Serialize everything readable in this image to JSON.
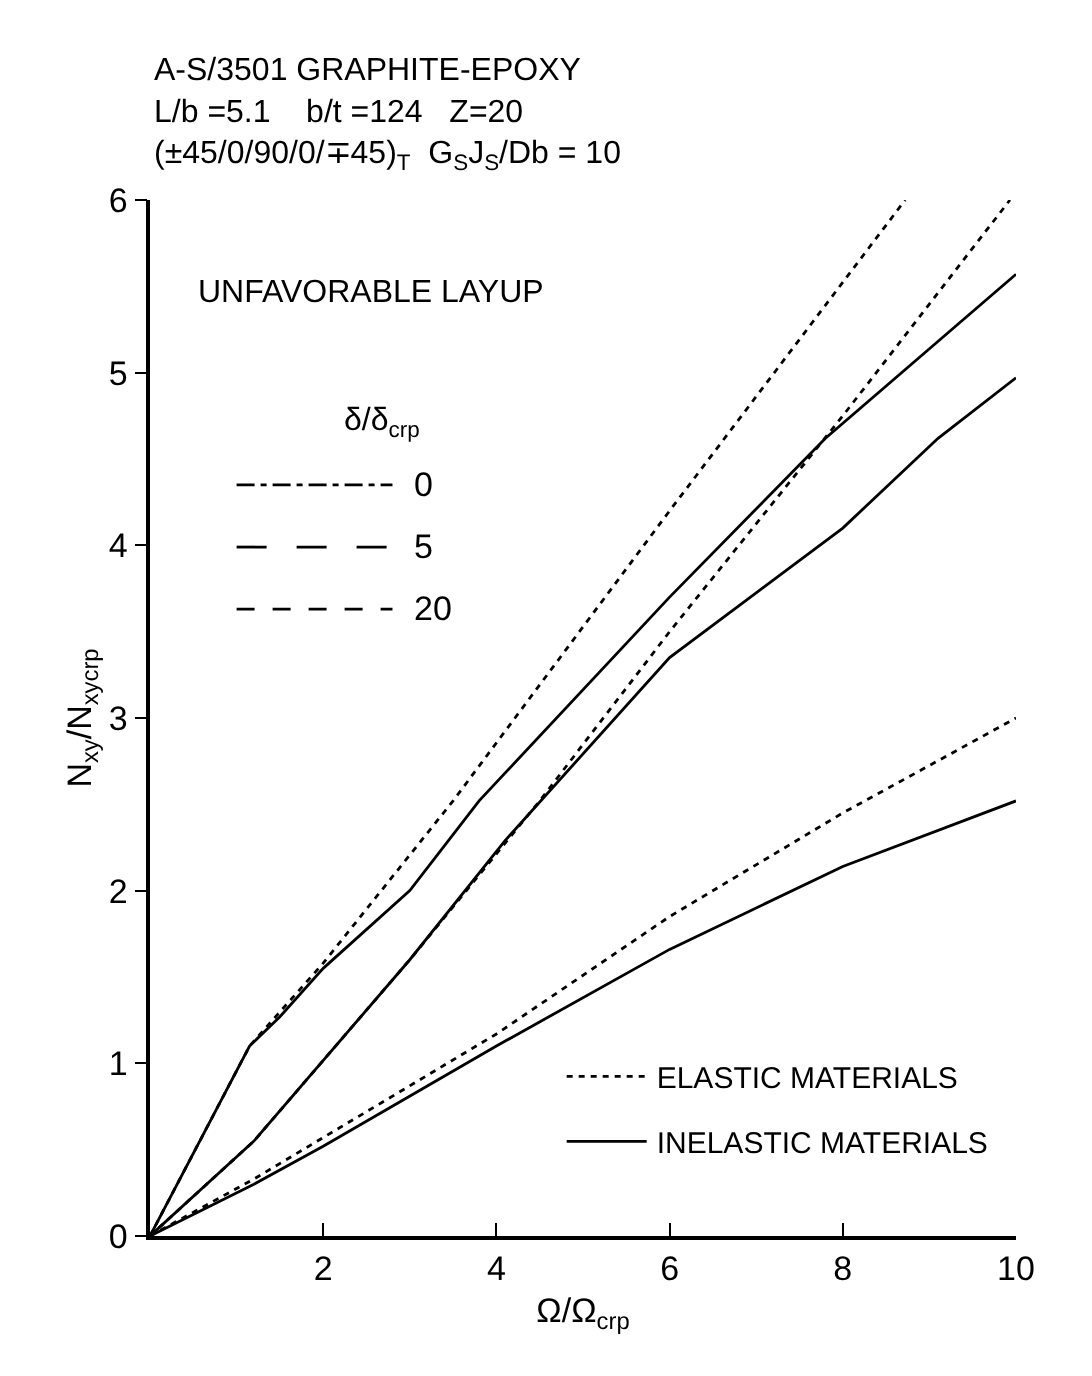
{
  "chart_data": {
    "type": "line",
    "title": "A-S/3501 GRAPHITE-EPOXY",
    "subtitle": "L/b =5.1    b/t =124   Z=20\n(±45/0/90/0/∓45)$_{T}$  G$_{S}$J$_{S}$/Db = 10",
    "xlabel": "Ω/Ω$_{crp}$",
    "ylabel": "N$_{xy}$/N$_{xycrp}$",
    "xlim": [
      0,
      10
    ],
    "ylim": [
      0,
      6
    ],
    "xticks": [
      2,
      4,
      6,
      8,
      10
    ],
    "yticks": [
      0,
      1,
      2,
      3,
      4,
      5,
      6
    ],
    "legend": "bottom right",
    "marker": "none",
    "legend_title": "δ/δ$_{crp}$",
    "annotations": [
      "UNFAVORABLE LAYUP",
      "0",
      "5",
      "20"
    ],
    "series": [
      {
        "name": "ELASTIC MATERIALS",
        "color": "#000000",
        "line_style": "dotted",
        "x": [
          0,
          1.15,
          2,
          3.5,
          6,
          8.72
        ],
        "values": [
          0,
          1.1,
          1.58,
          2.52,
          4.2,
          6
        ]
      },
      {
        "name": "INELASTIC MATERIALS",
        "color": "#000000",
        "line_style": "solid",
        "x": [
          0,
          1.15,
          1.5,
          2,
          3,
          3.8,
          6,
          7.8,
          10
        ],
        "values": [
          0,
          1.1,
          1.27,
          1.55,
          2.0,
          2.52,
          3.7,
          4.62,
          5.57
        ]
      },
      {
        "color": "#000000",
        "line_style": "dotted",
        "x": [
          0,
          1.2,
          3,
          4.5,
          6,
          8,
          9.93
        ],
        "values": [
          0,
          0.55,
          1.6,
          2.52,
          3.5,
          4.75,
          6
        ]
      },
      {
        "color": "#000000",
        "line_style": "solid",
        "x": [
          0,
          1.2,
          3,
          4.1,
          6,
          8,
          9.1,
          10
        ],
        "values": [
          0,
          0.55,
          1.6,
          2.29,
          3.35,
          4.1,
          4.62,
          4.97
        ]
      },
      {
        "color": "#000000",
        "line_style": "dotted",
        "x": [
          0,
          1.2,
          4,
          6,
          8,
          10
        ],
        "values": [
          0,
          0.33,
          1.17,
          1.85,
          2.45,
          3.0
        ]
      },
      {
        "color": "#000000",
        "line_style": "solid",
        "x": [
          0,
          1.2,
          2,
          4,
          6,
          8,
          10
        ],
        "values": [
          0,
          0.3,
          0.52,
          1.1,
          1.66,
          2.14,
          2.52
        ]
      }
    ]
  }
}
